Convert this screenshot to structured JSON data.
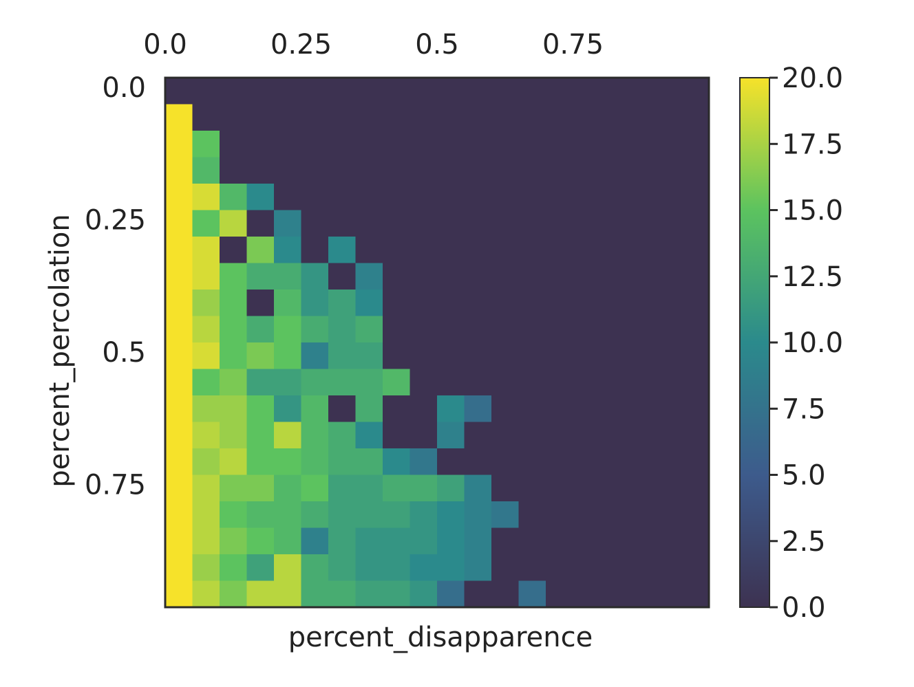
{
  "chart_data": {
    "type": "heatmap",
    "xlabel": "percent_disapparence",
    "ylabel": "percent_percolation",
    "x_tick_labels": [
      "0.0",
      "0.25",
      "0.5",
      "0.75"
    ],
    "y_tick_labels": [
      "0.0",
      "0.25",
      "0.5",
      "0.75"
    ],
    "x_ticks_position": "top",
    "colorbar": {
      "min": 0.0,
      "max": 20.0,
      "colormap": "viridis",
      "tick_labels": [
        "0.0",
        "2.5",
        "5.0",
        "7.5",
        "10.0",
        "12.5",
        "15.0",
        "17.5",
        "20.0"
      ]
    },
    "n_rows": 20,
    "n_cols": 20,
    "values": [
      [
        0,
        0,
        0,
        0,
        0,
        0,
        0,
        0,
        0,
        0,
        0,
        0,
        0,
        0,
        0,
        0,
        0,
        0,
        0,
        0
      ],
      [
        20,
        0,
        0,
        0,
        0,
        0,
        0,
        0,
        0,
        0,
        0,
        0,
        0,
        0,
        0,
        0,
        0,
        0,
        0,
        0
      ],
      [
        20,
        15,
        0,
        0,
        0,
        0,
        0,
        0,
        0,
        0,
        0,
        0,
        0,
        0,
        0,
        0,
        0,
        0,
        0,
        0
      ],
      [
        20,
        14,
        0,
        0,
        0,
        0,
        0,
        0,
        0,
        0,
        0,
        0,
        0,
        0,
        0,
        0,
        0,
        0,
        0,
        0
      ],
      [
        20,
        19,
        14,
        10,
        0,
        0,
        0,
        0,
        0,
        0,
        0,
        0,
        0,
        0,
        0,
        0,
        0,
        0,
        0,
        0
      ],
      [
        20,
        15,
        18,
        0,
        9,
        0,
        0,
        0,
        0,
        0,
        0,
        0,
        0,
        0,
        0,
        0,
        0,
        0,
        0,
        0
      ],
      [
        20,
        19,
        0,
        16,
        10,
        0,
        10,
        0,
        0,
        0,
        0,
        0,
        0,
        0,
        0,
        0,
        0,
        0,
        0,
        0
      ],
      [
        20,
        19,
        15,
        13,
        13,
        11,
        0,
        9,
        0,
        0,
        0,
        0,
        0,
        0,
        0,
        0,
        0,
        0,
        0,
        0
      ],
      [
        20,
        17,
        15,
        0,
        14,
        11,
        12,
        10,
        0,
        0,
        0,
        0,
        0,
        0,
        0,
        0,
        0,
        0,
        0,
        0
      ],
      [
        20,
        18,
        15,
        13,
        15,
        13,
        12,
        13,
        0,
        0,
        0,
        0,
        0,
        0,
        0,
        0,
        0,
        0,
        0,
        0
      ],
      [
        20,
        19,
        15,
        16,
        15,
        9,
        12,
        12,
        0,
        0,
        0,
        0,
        0,
        0,
        0,
        0,
        0,
        0,
        0,
        0
      ],
      [
        20,
        15,
        16,
        12,
        12,
        13,
        13,
        13,
        14,
        0,
        0,
        0,
        0,
        0,
        0,
        0,
        0,
        0,
        0,
        0
      ],
      [
        20,
        17,
        17,
        15,
        11,
        14,
        0,
        13,
        0,
        0,
        10,
        7,
        0,
        0,
        0,
        0,
        0,
        0,
        0,
        0
      ],
      [
        20,
        18,
        17,
        15,
        18,
        14,
        13,
        10,
        0,
        0,
        9,
        0,
        0,
        0,
        0,
        0,
        0,
        0,
        0,
        0
      ],
      [
        20,
        17,
        18,
        15,
        15,
        14,
        13,
        13,
        10,
        8,
        0,
        0,
        0,
        0,
        0,
        0,
        0,
        0,
        0,
        0
      ],
      [
        20,
        18,
        16,
        16,
        14,
        15,
        12,
        12,
        13,
        13,
        12,
        9,
        0,
        0,
        0,
        0,
        0,
        0,
        0,
        0
      ],
      [
        20,
        18,
        15,
        14,
        14,
        13,
        12,
        12,
        12,
        11,
        10,
        9,
        8,
        0,
        0,
        0,
        0,
        0,
        0,
        0
      ],
      [
        20,
        18,
        16,
        15,
        14,
        9,
        12,
        11,
        11,
        11,
        10,
        9,
        0,
        0,
        0,
        0,
        0,
        0,
        0,
        0
      ],
      [
        20,
        17,
        15,
        12,
        18,
        13,
        12,
        11,
        11,
        10,
        10,
        9,
        0,
        0,
        0,
        0,
        0,
        0,
        0,
        0
      ],
      [
        20,
        18,
        16,
        18,
        18,
        13,
        13,
        12,
        12,
        11,
        7,
        0,
        0,
        7,
        0,
        0,
        0,
        0,
        0,
        0
      ]
    ]
  }
}
